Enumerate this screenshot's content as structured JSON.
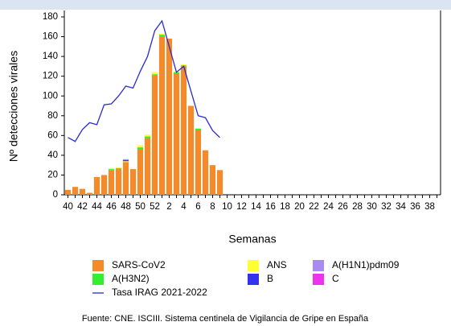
{
  "chart_data": {
    "type": "bar",
    "stacked": true,
    "y_label": "Nº detecciones virales",
    "x_label": "Semanas",
    "source": "Fuente: CNE. ISCIII. Sistema centinela de Vigilancia de Gripe en España",
    "categories": [
      "40",
      null,
      "42",
      null,
      "44",
      null,
      "46",
      null,
      "48",
      null,
      "50",
      null,
      "52",
      null,
      "2",
      null,
      "4",
      null,
      "6",
      null,
      "8",
      null,
      "10",
      null,
      "12",
      null,
      "14",
      null,
      "16",
      null,
      "18",
      null,
      "20",
      null,
      "22",
      null,
      "24",
      null,
      "26",
      null,
      "28",
      null,
      "30",
      null,
      "32",
      null,
      "34",
      null,
      "36",
      null,
      "38",
      null
    ],
    "ylim": [
      0,
      180
    ],
    "yticks": [
      0,
      20,
      40,
      60,
      80,
      100,
      120,
      140,
      160,
      180
    ],
    "series": [
      {
        "name": "SARS-CoV2",
        "color": "#f58a2b",
        "values": [
          5,
          8,
          6,
          2,
          18,
          20,
          25,
          26,
          33,
          26,
          46,
          57,
          121,
          160,
          158,
          123,
          130,
          90,
          66,
          45,
          30,
          25,
          null,
          null,
          null,
          null,
          null,
          null,
          null,
          null,
          null,
          null,
          null,
          null,
          null,
          null,
          null,
          null,
          null,
          null,
          null,
          null,
          null,
          null,
          null,
          null,
          null,
          null,
          null,
          null,
          null,
          null
        ]
      },
      {
        "name": "A(H3N2)",
        "color": "#33ee33",
        "values": [
          0,
          0,
          0,
          0,
          0,
          0,
          1,
          1,
          0,
          0,
          2,
          2,
          1,
          2,
          0,
          1,
          1,
          0,
          1,
          0,
          0,
          0,
          null,
          null,
          null,
          null,
          null,
          null,
          null,
          null,
          null,
          null,
          null,
          null,
          null,
          null,
          null,
          null,
          null,
          null,
          null,
          null,
          null,
          null,
          null,
          null,
          null,
          null,
          null,
          null,
          null,
          null
        ]
      },
      {
        "name": "ANS",
        "color": "#ffff33",
        "values": [
          0,
          0,
          0,
          0,
          0,
          0,
          1,
          1,
          1,
          0,
          2,
          2,
          2,
          1,
          0,
          1,
          1,
          0,
          0,
          0,
          0,
          0,
          null,
          null,
          null,
          null,
          null,
          null,
          null,
          null,
          null,
          null,
          null,
          null,
          null,
          null,
          null,
          null,
          null,
          null,
          null,
          null,
          null,
          null,
          null,
          null,
          null,
          null,
          null,
          null,
          null,
          null
        ]
      },
      {
        "name": "B",
        "color": "#3333ee",
        "values": [
          0,
          0,
          0,
          0,
          0,
          0,
          0,
          0,
          1,
          0,
          0,
          0,
          0,
          0,
          0,
          0,
          0,
          0,
          0,
          0,
          0,
          0,
          null,
          null,
          null,
          null,
          null,
          null,
          null,
          null,
          null,
          null,
          null,
          null,
          null,
          null,
          null,
          null,
          null,
          null,
          null,
          null,
          null,
          null,
          null,
          null,
          null,
          null,
          null,
          null,
          null,
          null
        ]
      },
      {
        "name": "A(H1N1)pdm09",
        "color": "#a98af0",
        "values": [
          0,
          0,
          0,
          0,
          0,
          0,
          0,
          0,
          1,
          0,
          0,
          0,
          0,
          0,
          0,
          0,
          0,
          0,
          0,
          0,
          0,
          0,
          null,
          null,
          null,
          null,
          null,
          null,
          null,
          null,
          null,
          null,
          null,
          null,
          null,
          null,
          null,
          null,
          null,
          null,
          null,
          null,
          null,
          null,
          null,
          null,
          null,
          null,
          null,
          null,
          null,
          null
        ]
      },
      {
        "name": "C",
        "color": "#ee33ee",
        "values": [
          0,
          0,
          0,
          0,
          0,
          0,
          0,
          0,
          0,
          0,
          0,
          0,
          0,
          0,
          0,
          0,
          0,
          0,
          0,
          0,
          0,
          0,
          null,
          null,
          null,
          null,
          null,
          null,
          null,
          null,
          null,
          null,
          null,
          null,
          null,
          null,
          null,
          null,
          null,
          null,
          null,
          null,
          null,
          null,
          null,
          null,
          null,
          null,
          null,
          null,
          null,
          null
        ]
      },
      {
        "name": "Tasa IRAG 2021-2022",
        "type": "line",
        "color": "#2a2ad0",
        "values": [
          58,
          54,
          66,
          73,
          71,
          91,
          92,
          100,
          110,
          108,
          125,
          140,
          166,
          176,
          150,
          124,
          130,
          105,
          80,
          78,
          65,
          58,
          null,
          null,
          null,
          null,
          null,
          null,
          null,
          null,
          null,
          null,
          null,
          null,
          null,
          null,
          null,
          null,
          null,
          null,
          null,
          null,
          null,
          null,
          null,
          null,
          null,
          null,
          null,
          null,
          null,
          null
        ]
      }
    ]
  }
}
